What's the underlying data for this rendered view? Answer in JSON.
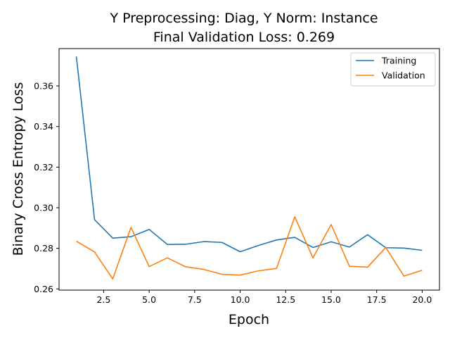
{
  "chart_data": {
    "type": "line",
    "title": "Y Preprocessing: Diag, Y Norm: Instance",
    "subtitle": "Final Validation Loss: 0.269",
    "xlabel": "Epoch",
    "ylabel": "Binary Cross Entropy Loss",
    "xlim": [
      0.05,
      20.95
    ],
    "ylim": [
      0.2594,
      0.3784
    ],
    "xticks": [
      2.5,
      5.0,
      7.5,
      10.0,
      12.5,
      15.0,
      17.5,
      20.0
    ],
    "xtick_labels": [
      "2.5",
      "5.0",
      "7.5",
      "10.0",
      "12.5",
      "15.0",
      "17.5",
      "20.0"
    ],
    "yticks": [
      0.26,
      0.28,
      0.3,
      0.32,
      0.34,
      0.36
    ],
    "ytick_labels": [
      "0.26",
      "0.28",
      "0.30",
      "0.32",
      "0.34",
      "0.36"
    ],
    "grid": false,
    "legend_position": "top-right",
    "x": [
      1,
      2,
      3,
      4,
      5,
      6,
      7,
      8,
      9,
      10,
      11,
      12,
      13,
      14,
      15,
      16,
      17,
      18,
      19,
      20
    ],
    "series": [
      {
        "name": "Training",
        "color": "#1f77b4",
        "values": [
          0.3745,
          0.2941,
          0.285,
          0.2857,
          0.2893,
          0.2819,
          0.282,
          0.2833,
          0.2829,
          0.2783,
          0.2814,
          0.2841,
          0.2854,
          0.2804,
          0.2832,
          0.2806,
          0.2867,
          0.2803,
          0.2801,
          0.279
        ]
      },
      {
        "name": "Validation",
        "color": "#ff7f0e",
        "values": [
          0.2835,
          0.2782,
          0.2649,
          0.2903,
          0.271,
          0.2753,
          0.2709,
          0.2696,
          0.2672,
          0.2668,
          0.2689,
          0.2701,
          0.2955,
          0.2753,
          0.2917,
          0.2712,
          0.2707,
          0.2804,
          0.2663,
          0.2692
        ]
      }
    ]
  }
}
